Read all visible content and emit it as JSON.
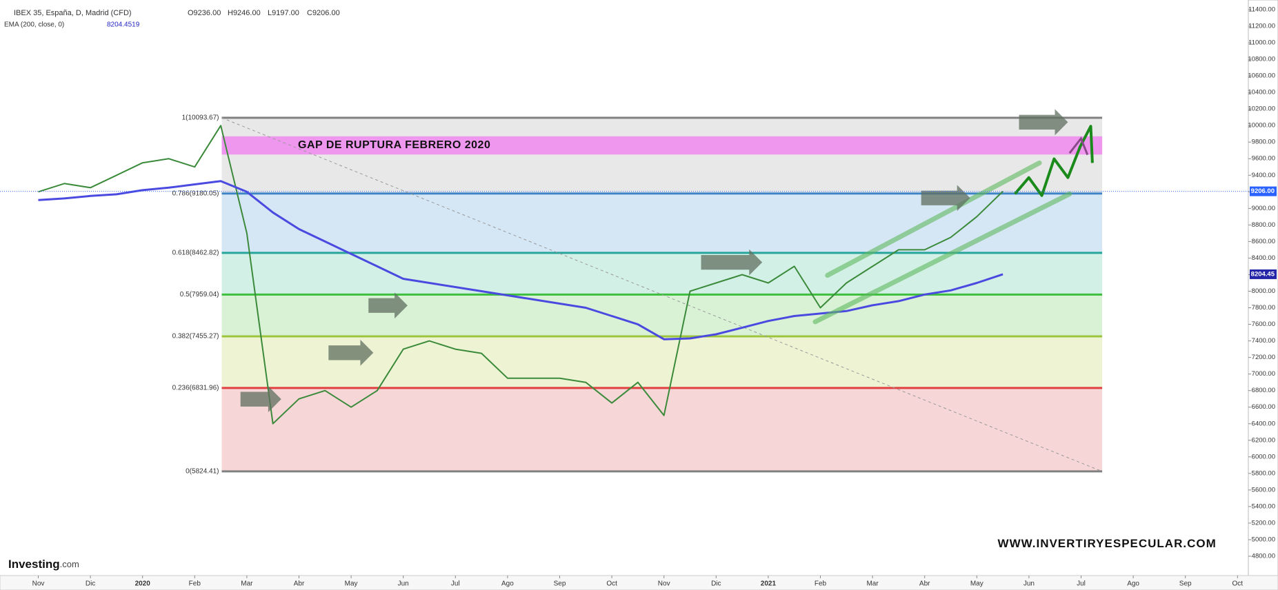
{
  "chart_data": {
    "type": "line",
    "title": "IBEX 35, España, D, Madrid (CFD)",
    "ohlc_labels": [
      "O9236.00",
      "H9246.00",
      "L9197.00",
      "C9206.00"
    ],
    "indicator": "EMA (200, close, 0)",
    "indicator_value": "8204.4519",
    "categories": [
      "Nov",
      null,
      "Dic",
      null,
      "2020",
      null,
      "Feb",
      null,
      "Mar",
      null,
      "Abr",
      null,
      "May",
      null,
      "Jun",
      null,
      "Jul",
      null,
      "Ago",
      null,
      "Sep",
      null,
      "Oct",
      null,
      "Nov",
      null,
      "Dic",
      null,
      "2021",
      null,
      "Feb",
      null,
      "Mar",
      null,
      "Abr",
      null,
      "May",
      null,
      "Jun",
      null,
      "Jul",
      null,
      "Ago",
      null,
      "Sep",
      null,
      "Oct",
      null
    ],
    "series": [
      {
        "color": "#3a8a3a",
        "values": [
          9200,
          9300,
          9250,
          9400,
          9550,
          9600,
          9500,
          10000,
          8700,
          6400,
          6700,
          6800,
          6600,
          6800,
          7300,
          7400,
          7300,
          7250,
          6950,
          6950,
          6950,
          6900,
          6650,
          6900,
          6500,
          8000,
          8100,
          8200,
          8100,
          8300,
          7800,
          8100,
          8300,
          8500,
          8500,
          8650,
          8900,
          9206,
          null,
          null,
          null,
          null,
          null,
          null,
          null,
          null,
          null,
          null
        ]
      },
      {
        "color": "#4a4ae0",
        "values": [
          9100,
          9120,
          9150,
          9170,
          9220,
          9250,
          9290,
          9330,
          9200,
          8950,
          8750,
          8600,
          8450,
          8300,
          8150,
          8100,
          8050,
          8000,
          7950,
          7900,
          7850,
          7800,
          7700,
          7600,
          7420,
          7430,
          7480,
          7560,
          7640,
          7700,
          7730,
          7760,
          7830,
          7880,
          7960,
          8010,
          8100,
          8204.45,
          null,
          null,
          null,
          null,
          null,
          null,
          null,
          null,
          null,
          null
        ]
      }
    ],
    "ylim": [
      4567,
      11516
    ],
    "yticks": [
      {
        "value": 4800,
        "label": "4800.00"
      },
      {
        "value": 5000,
        "label": "5000.00"
      },
      {
        "value": 5200,
        "label": "5200.00"
      },
      {
        "value": 5400,
        "label": "5400.00"
      },
      {
        "value": 5600,
        "label": "5600.00"
      },
      {
        "value": 5800,
        "label": "5800.00"
      },
      {
        "value": 6000,
        "label": "6000.00"
      },
      {
        "value": 6200,
        "label": "6200.00"
      },
      {
        "value": 6400,
        "label": "6400.00"
      },
      {
        "value": 6600,
        "label": "6600.00"
      },
      {
        "value": 6800,
        "label": "6800.00"
      },
      {
        "value": 7000,
        "label": "7000.00"
      },
      {
        "value": 7200,
        "label": "7200.00"
      },
      {
        "value": 7400,
        "label": "7400.00"
      },
      {
        "value": 7600,
        "label": "7600.00"
      },
      {
        "value": 7800,
        "label": "7800.00"
      },
      {
        "value": 8000,
        "label": "8000.00"
      },
      {
        "value": 8200,
        "label": "8200.00"
      },
      {
        "value": 8400,
        "label": "8400.00"
      },
      {
        "value": 8600,
        "label": "8600.00"
      },
      {
        "value": 8800,
        "label": "8800.00"
      },
      {
        "value": 9000,
        "label": "9000.00"
      },
      {
        "value": 9200,
        "label": "9200.00"
      },
      {
        "value": 9400,
        "label": "9400.00"
      },
      {
        "value": 9600,
        "label": "9600.00"
      },
      {
        "value": 9800,
        "label": "9800.00"
      },
      {
        "value": 10000,
        "label": "10000.00"
      },
      {
        "value": 10200,
        "label": "10200.00"
      },
      {
        "value": 10400,
        "label": "10400.00"
      },
      {
        "value": 10600,
        "label": "10600.00"
      },
      {
        "value": 10800,
        "label": "10800.00"
      },
      {
        "value": 11000,
        "label": "11000.00"
      },
      {
        "value": 11200,
        "label": "11200.00"
      },
      {
        "value": 11400,
        "label": "11400.00"
      }
    ],
    "fib_levels": [
      {
        "value": 10093.67,
        "label": "1(10093.67)",
        "color": "#808080",
        "fill": "#e8e8e8"
      },
      {
        "value": 9180.05,
        "label": "0.786(9180.05)",
        "color": "#3d85c6",
        "fill": "#d5e6f5"
      },
      {
        "value": 8462.82,
        "label": "0.618(8462.82)",
        "color": "#26a69a",
        "fill": "#d3f0e6"
      },
      {
        "value": 7959.04,
        "label": "0.5(7959.04)",
        "color": "#3cbf3c",
        "fill": "#d9f2d6"
      },
      {
        "value": 7455.27,
        "label": "0.382(7455.27)",
        "color": "#9cc43c",
        "fill": "#eef3d4"
      },
      {
        "value": 6831.96,
        "label": "0.236(6831.96)",
        "color": "#e04040",
        "fill": "#f6d6d6"
      },
      {
        "value": 5824.41,
        "label": "0(5824.41)",
        "color": "#808080"
      }
    ],
    "gap": {
      "text": "GAP DE RUPTURA FEBRERO 2020",
      "range": [
        9650,
        9870
      ],
      "color": "#f08ef0"
    },
    "price_tags": [
      {
        "value": 9206,
        "label": "9206.00",
        "color": "#2962ff"
      },
      {
        "value": 8204.45,
        "label": "8204.45",
        "color": "#2424a8"
      }
    ],
    "watermark": "WWW.INVERTIRYESPECULAR.COM",
    "logo": [
      "Investing",
      ".com"
    ]
  }
}
